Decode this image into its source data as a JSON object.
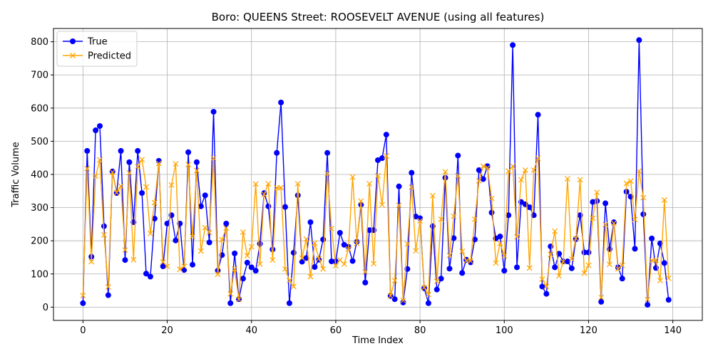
{
  "chart_data": {
    "type": "line",
    "title": "Boro: QUEENS Street: ROOSEVELT AVENUE (using all features)",
    "xlabel": "Time Index",
    "ylabel": "Traffic Volume",
    "xlim": [
      -7,
      147
    ],
    "ylim": [
      -40,
      840
    ],
    "xticks": [
      0,
      20,
      40,
      60,
      80,
      100,
      120,
      140
    ],
    "yticks": [
      0,
      100,
      200,
      300,
      400,
      500,
      600,
      700,
      800
    ],
    "grid": true,
    "legend_position": "upper-left",
    "series": [
      {
        "name": "True",
        "color": "#0000ff",
        "marker": "circle",
        "values": [
          12,
          471,
          152,
          533,
          546,
          244,
          36,
          409,
          344,
          471,
          142,
          437,
          256,
          471,
          344,
          101,
          92,
          267,
          441,
          123,
          252,
          277,
          201,
          252,
          112,
          467,
          128,
          437,
          304,
          337,
          195,
          589,
          110,
          157,
          252,
          12,
          162,
          24,
          86,
          134,
          120,
          110,
          191,
          344,
          304,
          174,
          465,
          617,
          302,
          12,
          164,
          337,
          137,
          148,
          256,
          121,
          143,
          204,
          465,
          138,
          138,
          224,
          188,
          182,
          139,
          197,
          309,
          74,
          232,
          232,
          443,
          449,
          520,
          34,
          24,
          364,
          14,
          115,
          405,
          273,
          268,
          57,
          12,
          244,
          53,
          86,
          390,
          116,
          208,
          457,
          103,
          143,
          135,
          204,
          413,
          386,
          425,
          285,
          207,
          213,
          110,
          277,
          790,
          120,
          317,
          310,
          301,
          277,
          580,
          62,
          40,
          183,
          120,
          161,
          138,
          138,
          117,
          205,
          277,
          165,
          165,
          317,
          320,
          16,
          313,
          175,
          256,
          120,
          86,
          348,
          333,
          176,
          805,
          280,
          7,
          207,
          118,
          192,
          133,
          22
        ]
      },
      {
        "name": "Predicted",
        "color": "#ffa500",
        "marker": "x",
        "values": [
          35,
          418,
          137,
          395,
          444,
          218,
          61,
          407,
          345,
          365,
          172,
          405,
          143,
          424,
          445,
          362,
          222,
          315,
          433,
          136,
          123,
          368,
          432,
          114,
          123,
          430,
          213,
          412,
          169,
          240,
          225,
          449,
          99,
          203,
          238,
          40,
          115,
          23,
          226,
          155,
          182,
          371,
          130,
          340,
          372,
          142,
          360,
          360,
          115,
          80,
          62,
          372,
          148,
          205,
          92,
          193,
          146,
          115,
          402,
          237,
          125,
          142,
          130,
          175,
          392,
          192,
          320,
          106,
          372,
          131,
          396,
          309,
          456,
          34,
          80,
          307,
          20,
          190,
          362,
          170,
          260,
          59,
          38,
          336,
          78,
          265,
          408,
          156,
          274,
          396,
          168,
          140,
          139,
          265,
          381,
          425,
          420,
          328,
          133,
          192,
          155,
          410,
          425,
          212,
          384,
          413,
          118,
          413,
          449,
          84,
          62,
          159,
          229,
          94,
          137,
          387,
          145,
          207,
          384,
          102,
          126,
          268,
          346,
          29,
          249,
          129,
          253,
          115,
          126,
          373,
          380,
          264,
          410,
          330,
          23,
          141,
          142,
          80,
          323,
          87
        ]
      }
    ]
  }
}
